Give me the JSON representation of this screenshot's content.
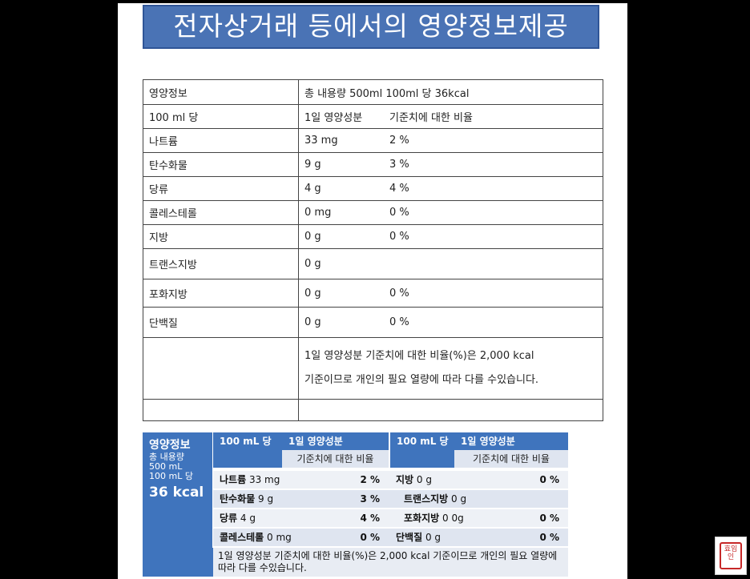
{
  "title": "전자상거래 등에서의 영양정보제공",
  "table1": {
    "header": {
      "label": "영양정보",
      "value": "총 내용량 500ml 100ml 당 36kcal"
    },
    "subheader": {
      "label": "100 ml 당",
      "col1": "1일 영양성분",
      "col2": "기준치에 대한 비율"
    },
    "rows": [
      {
        "name": "나트륨",
        "amount": "33 mg",
        "percent": "2 %"
      },
      {
        "name": "탄수화물",
        "amount": "9 g",
        "percent": "3 %"
      },
      {
        "name": "당류",
        "amount": "4 g",
        "percent": "4 %"
      },
      {
        "name": "콜레스테롤",
        "amount": "0 mg",
        "percent": "0 %"
      },
      {
        "name": "지방",
        "amount": "0 g",
        "percent": "0 %"
      },
      {
        "name": "트랜스지방",
        "amount": "0 g",
        "percent": ""
      },
      {
        "name": "포화지방",
        "amount": "0 g",
        "percent": "0 %"
      },
      {
        "name": "단백질",
        "amount": "0 g",
        "percent": "0 %"
      }
    ],
    "note_line1": "1일 영양성분 기준치에 대한 비율(%)은 2,000 kcal",
    "note_line2": "기준이므로 개인의 필요 열량에 따라 다를 수있습니다."
  },
  "label": {
    "title": "영양정보",
    "total_label": "총 내용량",
    "total_value": "500 mL",
    "per_label": "100 mL 당",
    "kcal": "36 kcal",
    "col_per": "100 mL 당",
    "col_daily": "1일 영양성분",
    "col_ratio": "기준치에 대한 비율",
    "left_rows": [
      {
        "name": "나트륨",
        "amount": "33 mg",
        "percent": "2 %"
      },
      {
        "name": "탄수화물",
        "amount": "9 g",
        "percent": "3 %"
      },
      {
        "name": "당류",
        "amount": "4 g",
        "percent": "4 %"
      },
      {
        "name": "콜레스테롤",
        "amount": "0 mg",
        "percent": "0 %"
      }
    ],
    "right_rows": [
      {
        "name": "지방",
        "amount": "0 g",
        "percent": "0 %"
      },
      {
        "name": "트랜스지방",
        "amount": "0 g",
        "percent": ""
      },
      {
        "name": "포화지방",
        "amount": "0 0g",
        "percent": "0 %"
      },
      {
        "name": "단백질",
        "amount": "0 g",
        "percent": "0 %"
      }
    ],
    "footnote": "1일 영양성분 기준치에 대한 비율(%)은 2,000 kcal 기준이므로 개인의 필요 열량에 따라 다를 수있습니다."
  },
  "seal_text": "효임인"
}
